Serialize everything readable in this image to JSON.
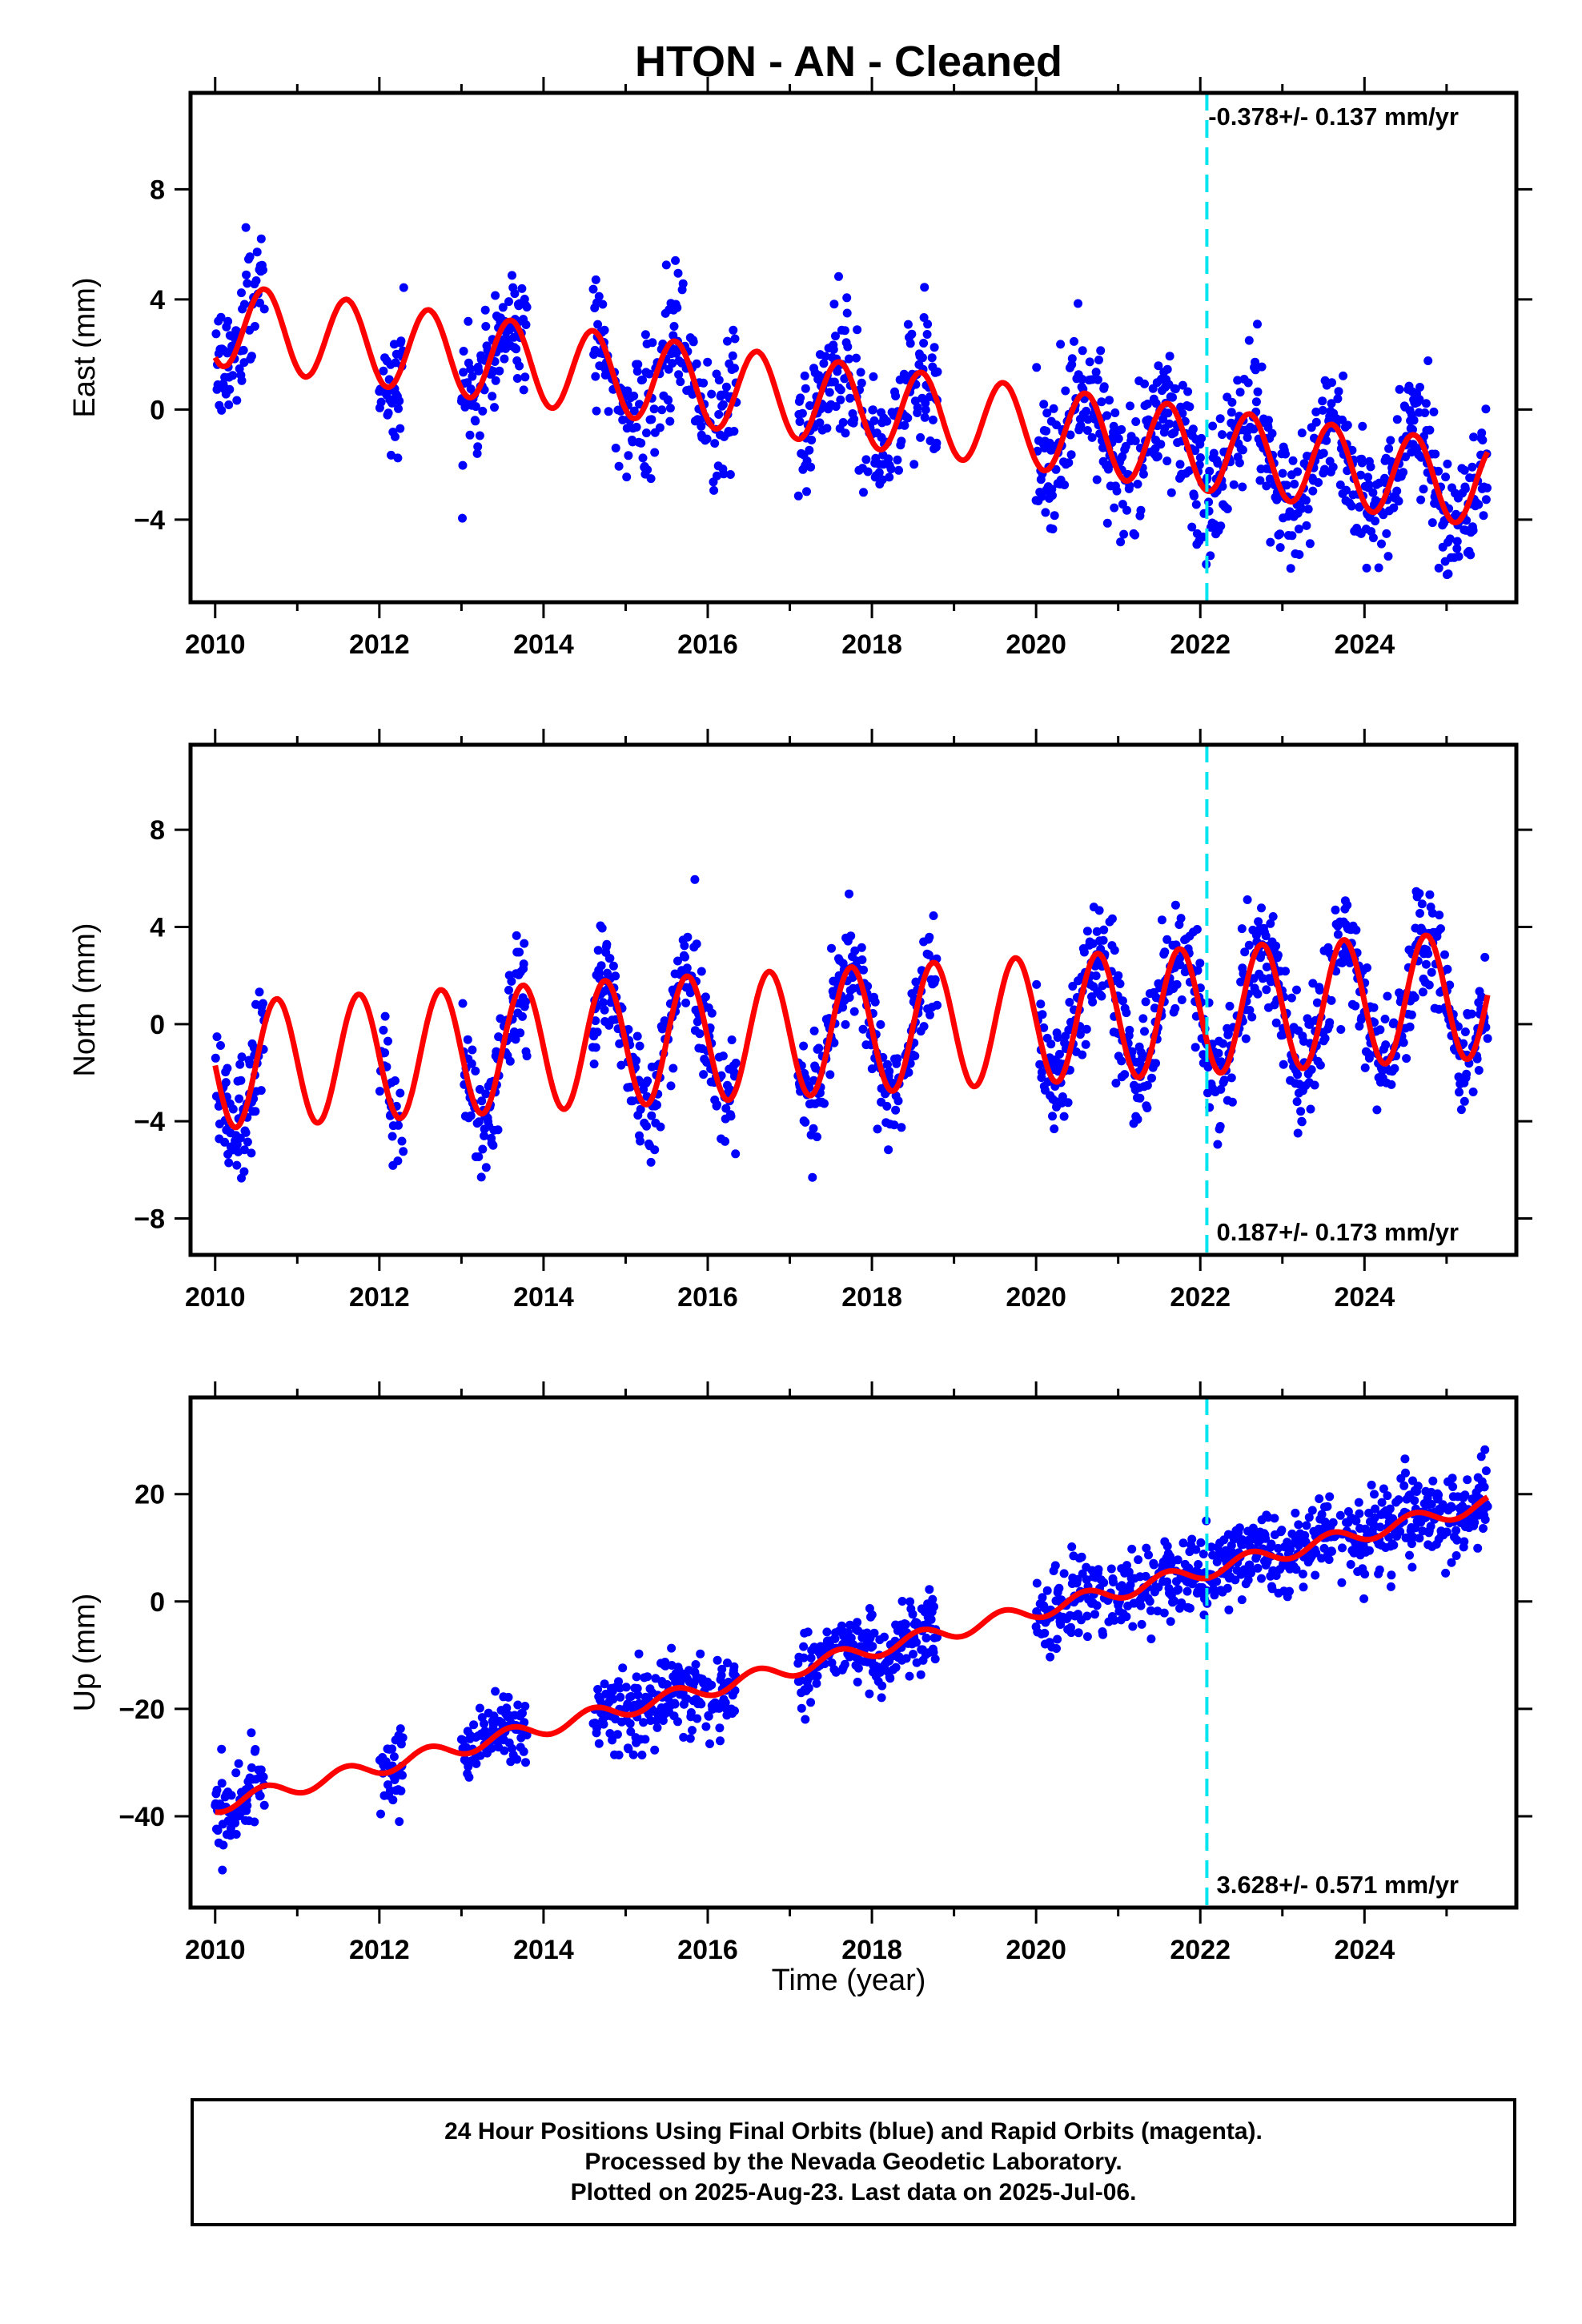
{
  "title": "HTON  - AN - Cleaned",
  "colors": {
    "final_orbits": "#0000ff",
    "model": "#ff0000",
    "event_line": "#00e5ee",
    "frame": "#000000"
  },
  "x_axis": {
    "label": "Time (year)",
    "range": [
      2009.7,
      2025.85
    ],
    "ticks": [
      2010,
      2012,
      2014,
      2016,
      2018,
      2020,
      2022,
      2024
    ],
    "tick_labels": [
      "2010",
      "2012",
      "2014",
      "2016",
      "2018",
      "2020",
      "2022",
      "2024"
    ],
    "event_line_year": 2022.08
  },
  "footer": {
    "line1": "24 Hour Positions Using Final Orbits (blue) and Rapid Orbits (magenta).",
    "line2": "Processed by the Nevada Geodetic Laboratory.",
    "line3": "Plotted on 2025-Aug-23. Last data on 2025-Jul-06."
  },
  "chart_data": [
    {
      "type": "scatter",
      "component": "east",
      "ylabel": "East (mm)",
      "ylim": [
        -7,
        11.5
      ],
      "yticks": [
        -4,
        0,
        4,
        8
      ],
      "ytick_labels": [
        "−4",
        "0",
        "4",
        "8"
      ],
      "rate": "-0.378+/- 0.137 mm/yr",
      "rate_position": "top-right",
      "data_segments": [
        [
          2010.0,
          2010.6
        ],
        [
          2012.0,
          2012.3
        ],
        [
          2013.0,
          2013.8
        ],
        [
          2014.6,
          2016.35
        ],
        [
          2017.1,
          2018.8
        ],
        [
          2020.0,
          2025.5
        ]
      ],
      "model": {
        "trend_mm_per_yr": -0.378,
        "offset_mm": 3.1,
        "annual_amplitude_mm": 1.5,
        "annual_peak_year_fraction": 0.6
      },
      "series": [
        {
          "name": "Final Orbits",
          "color": "#0000ff",
          "x": [],
          "y": []
        },
        {
          "name": "Model",
          "color": "#ff0000",
          "x": [],
          "y": []
        }
      ]
    },
    {
      "type": "scatter",
      "component": "north",
      "ylabel": "North (mm)",
      "ylim": [
        -9.5,
        11.5
      ],
      "yticks": [
        -8,
        -4,
        0,
        4,
        8
      ],
      "ytick_labels": [
        "−8",
        "−4",
        "0",
        "4",
        "8"
      ],
      "rate": "0.187+/- 0.173 mm/yr",
      "rate_position": "bottom-right",
      "data_segments": [
        [
          2010.0,
          2010.6
        ],
        [
          2012.0,
          2012.3
        ],
        [
          2013.0,
          2013.8
        ],
        [
          2014.6,
          2016.35
        ],
        [
          2017.1,
          2018.8
        ],
        [
          2020.0,
          2025.5
        ]
      ],
      "model": {
        "trend_mm_per_yr": 0.187,
        "offset_mm": -1.7,
        "annual_amplitude_mm": 2.6,
        "annual_peak_year_fraction": 0.75
      },
      "series": [
        {
          "name": "Final Orbits",
          "color": "#0000ff",
          "x": [],
          "y": []
        },
        {
          "name": "Model",
          "color": "#ff0000",
          "x": [],
          "y": []
        }
      ]
    },
    {
      "type": "scatter",
      "component": "up",
      "ylabel": "Up (mm)",
      "ylim": [
        -57,
        38
      ],
      "yticks": [
        -40,
        -20,
        0,
        20
      ],
      "ytick_labels": [
        "−40",
        "−20",
        "0",
        "20"
      ],
      "rate": "3.628+/- 0.571 mm/yr",
      "rate_position": "bottom-right",
      "data_segments": [
        [
          2010.0,
          2010.6
        ],
        [
          2012.0,
          2012.3
        ],
        [
          2013.0,
          2013.8
        ],
        [
          2014.6,
          2016.35
        ],
        [
          2017.1,
          2018.8
        ],
        [
          2020.0,
          2025.5
        ]
      ],
      "model": {
        "trend_mm_per_yr": 3.628,
        "offset_mm": -38.0,
        "annual_amplitude_mm": 1.5,
        "annual_peak_year_fraction": 0.6
      },
      "series": [
        {
          "name": "Final Orbits",
          "color": "#0000ff",
          "x": [],
          "y": []
        },
        {
          "name": "Model",
          "color": "#ff0000",
          "x": [],
          "y": []
        }
      ]
    }
  ]
}
